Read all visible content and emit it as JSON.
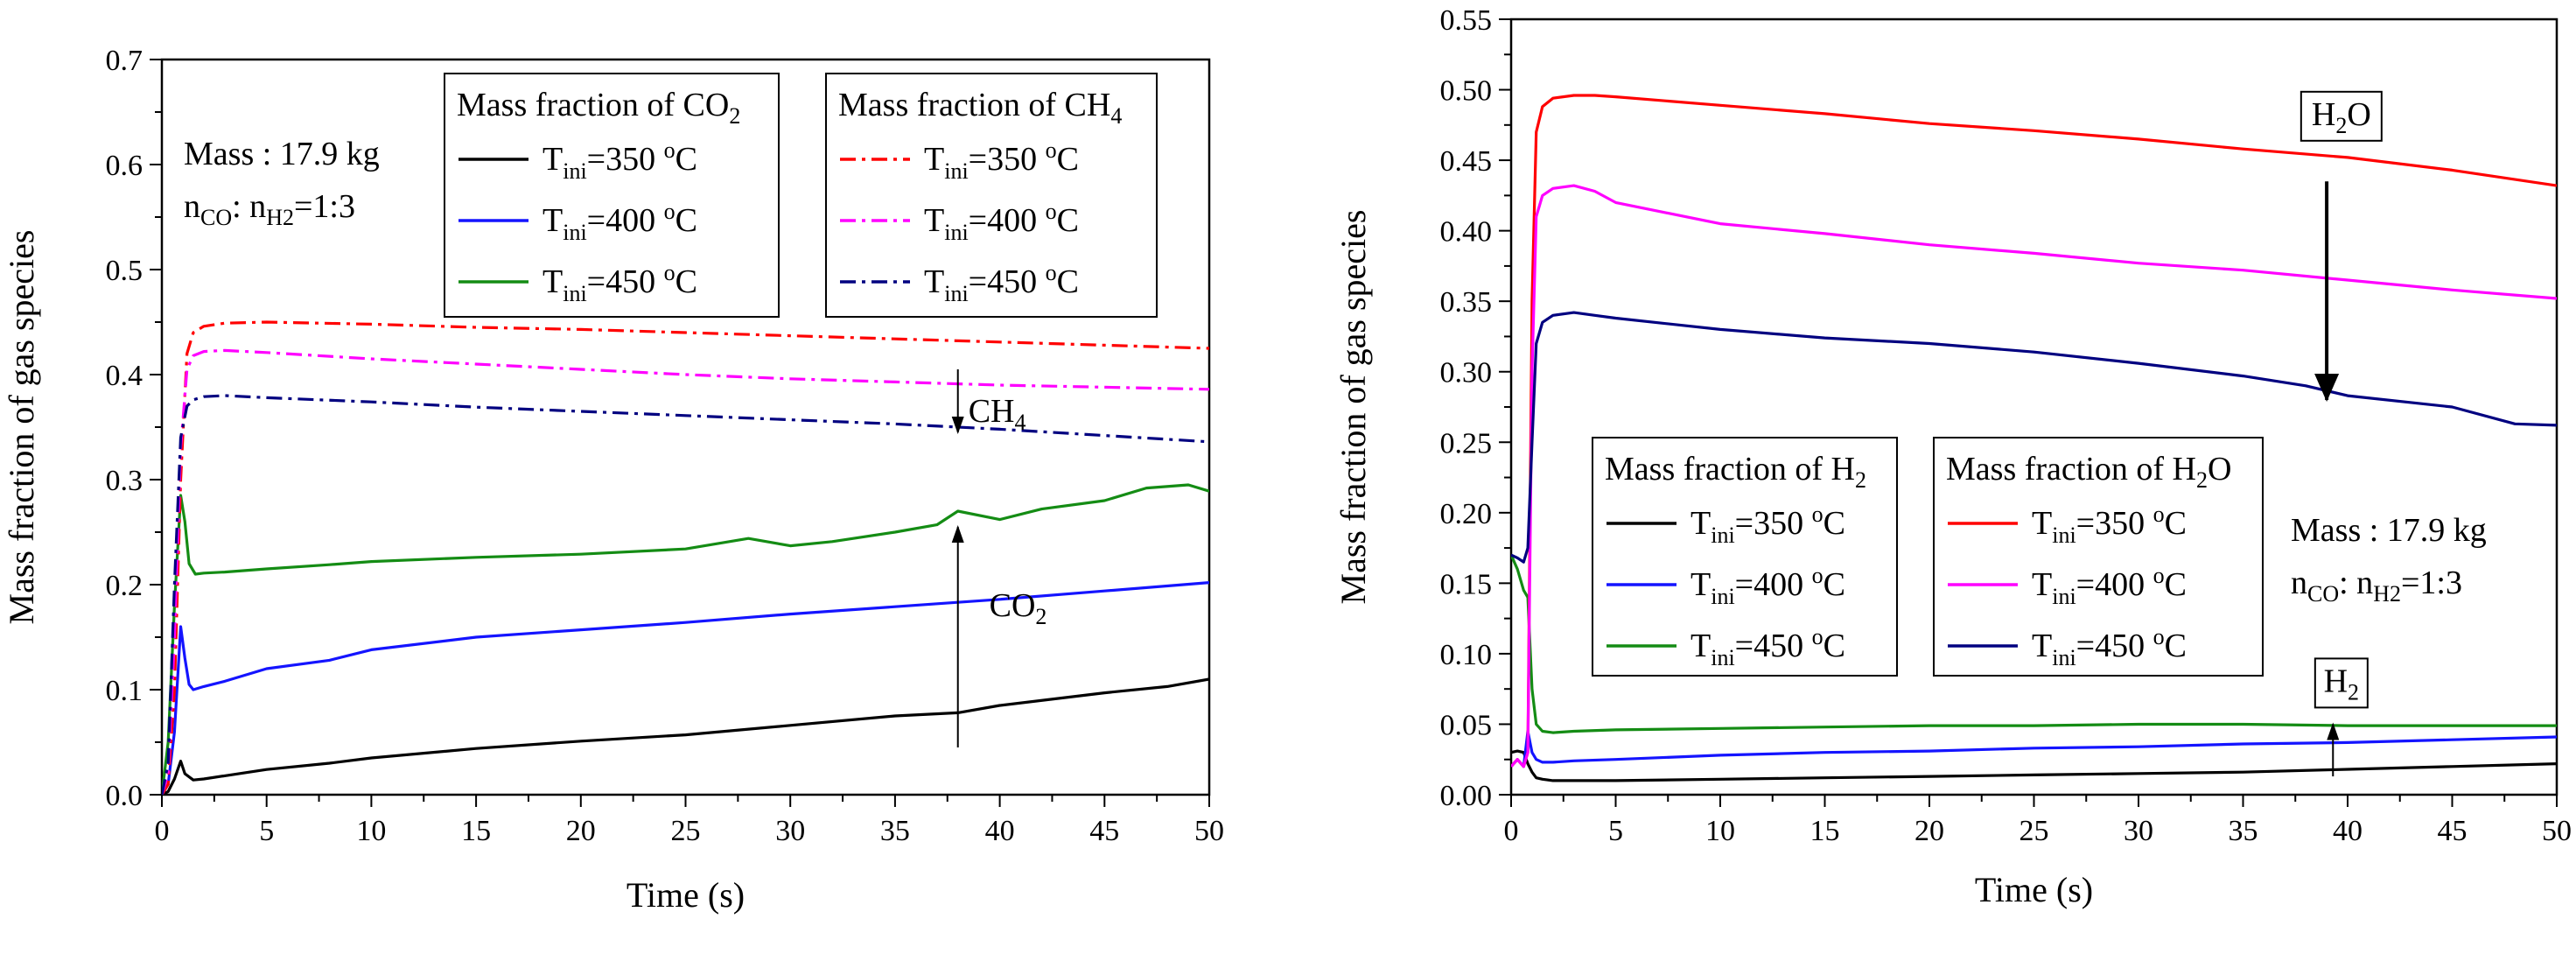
{
  "chart_data": [
    {
      "type": "line",
      "id": "left",
      "xlabel": "Time (s)",
      "ylabel": "Mass fraction of gas species",
      "xlim": [
        0,
        50
      ],
      "ylim": [
        0,
        0.7
      ],
      "xticks": [
        "0",
        "5",
        "10",
        "15",
        "20",
        "25",
        "30",
        "35",
        "40",
        "45",
        "50"
      ],
      "yticks": [
        "0.0",
        "0.1",
        "0.2",
        "0.3",
        "0.4",
        "0.5",
        "0.6",
        "0.7"
      ],
      "info": {
        "mass": "Mass : 17.9 kg",
        "ratio_prefix": "n",
        "ratio_sub1": "CO",
        "ratio_mid": ": n",
        "ratio_sub2": "H2",
        "ratio_suffix": "=1:3"
      },
      "legends": [
        {
          "title_text": "Mass fraction of CO",
          "title_sub": "2",
          "title_after": "",
          "entries": [
            {
              "prefix": "T",
              "sub": "ini",
              "mid": "=350 ",
              "sup": "o",
              "suffix": "C",
              "color": "#000000",
              "dash": "solid"
            },
            {
              "prefix": "T",
              "sub": "ini",
              "mid": "=400 ",
              "sup": "o",
              "suffix": "C",
              "color": "#1414ff",
              "dash": "solid"
            },
            {
              "prefix": "T",
              "sub": "ini",
              "mid": "=450 ",
              "sup": "o",
              "suffix": "C",
              "color": "#148c14",
              "dash": "solid"
            }
          ]
        },
        {
          "title_text": "Mass fraction of CH",
          "title_sub": "4",
          "title_after": "",
          "entries": [
            {
              "prefix": "T",
              "sub": "ini",
              "mid": "=350 ",
              "sup": "o",
              "suffix": "C",
              "color": "#ff0000",
              "dash": "dashdot"
            },
            {
              "prefix": "T",
              "sub": "ini",
              "mid": "=400 ",
              "sup": "o",
              "suffix": "C",
              "color": "#ff00ff",
              "dash": "dashdot"
            },
            {
              "prefix": "T",
              "sub": "ini",
              "mid": "=450 ",
              "sup": "o",
              "suffix": "C",
              "color": "#000080",
              "dash": "dashdot"
            }
          ]
        }
      ],
      "annotations": [
        {
          "text": "CH",
          "sub": "4",
          "boxed": false,
          "x": 38.5,
          "y": 0.355,
          "arrow": {
            "x": 38,
            "y_from": 0.405,
            "y_to": 0.345,
            "head": "down"
          }
        },
        {
          "text": "CO",
          "sub": "2",
          "boxed": false,
          "x": 39.5,
          "y": 0.17,
          "arrow": {
            "x": 38,
            "y_from": 0.045,
            "y_to": 0.255,
            "head": "up"
          }
        }
      ],
      "series": [
        {
          "name": "CO2 Tini=350 °C",
          "color": "#000000",
          "dash": "solid",
          "x": [
            0,
            0.3,
            0.6,
            0.9,
            1.1,
            1.5,
            2,
            3,
            5,
            8,
            10,
            15,
            20,
            25,
            30,
            35,
            38,
            40,
            45,
            48,
            50
          ],
          "y": [
            0,
            0.003,
            0.015,
            0.032,
            0.02,
            0.014,
            0.015,
            0.018,
            0.024,
            0.03,
            0.035,
            0.044,
            0.051,
            0.057,
            0.066,
            0.075,
            0.078,
            0.085,
            0.097,
            0.103,
            0.11
          ]
        },
        {
          "name": "CO2 Tini=400 °C",
          "color": "#1414ff",
          "dash": "solid",
          "x": [
            0,
            0.3,
            0.6,
            0.9,
            1.1,
            1.3,
            1.5,
            2,
            3,
            5,
            8,
            10,
            15,
            20,
            25,
            30,
            35,
            40,
            45,
            50
          ],
          "y": [
            0,
            0.01,
            0.06,
            0.16,
            0.13,
            0.105,
            0.1,
            0.103,
            0.108,
            0.12,
            0.128,
            0.138,
            0.15,
            0.157,
            0.164,
            0.172,
            0.179,
            0.186,
            0.194,
            0.202
          ]
        },
        {
          "name": "CO2 Tini=450 °C",
          "color": "#148c14",
          "dash": "solid",
          "x": [
            0,
            0.3,
            0.6,
            0.9,
            1.1,
            1.3,
            1.6,
            2,
            3,
            5,
            8,
            10,
            15,
            20,
            25,
            28,
            30,
            32,
            35,
            37,
            38,
            40,
            42,
            45,
            47,
            49,
            50
          ],
          "y": [
            0,
            0.05,
            0.18,
            0.285,
            0.26,
            0.22,
            0.21,
            0.211,
            0.212,
            0.215,
            0.219,
            0.222,
            0.226,
            0.229,
            0.234,
            0.244,
            0.237,
            0.241,
            0.25,
            0.257,
            0.27,
            0.262,
            0.272,
            0.28,
            0.292,
            0.295,
            0.289
          ]
        },
        {
          "name": "CH4 Tini=350 °C",
          "color": "#ff0000",
          "dash": "dashdot",
          "x": [
            0,
            0.3,
            0.6,
            0.9,
            1.2,
            1.5,
            2,
            3,
            5,
            10,
            15,
            20,
            25,
            30,
            35,
            40,
            45,
            50
          ],
          "y": [
            0,
            0.01,
            0.1,
            0.3,
            0.42,
            0.44,
            0.446,
            0.449,
            0.45,
            0.448,
            0.445,
            0.443,
            0.44,
            0.437,
            0.434,
            0.431,
            0.428,
            0.425
          ]
        },
        {
          "name": "CH4 Tini=400 °C",
          "color": "#ff00ff",
          "dash": "dashdot",
          "x": [
            0,
            0.3,
            0.6,
            0.9,
            1.2,
            1.5,
            2,
            3,
            5,
            10,
            15,
            20,
            25,
            30,
            35,
            40,
            45,
            50
          ],
          "y": [
            0,
            0.02,
            0.15,
            0.33,
            0.405,
            0.418,
            0.422,
            0.423,
            0.421,
            0.415,
            0.41,
            0.405,
            0.4,
            0.396,
            0.393,
            0.39,
            0.388,
            0.386
          ]
        },
        {
          "name": "CH4 Tini=450 °C",
          "color": "#000080",
          "dash": "dashdot",
          "x": [
            0,
            0.3,
            0.6,
            0.9,
            1.2,
            1.5,
            2,
            3,
            5,
            10,
            15,
            20,
            25,
            30,
            35,
            40,
            45,
            50
          ],
          "y": [
            0,
            0.03,
            0.2,
            0.34,
            0.37,
            0.376,
            0.379,
            0.38,
            0.378,
            0.374,
            0.369,
            0.365,
            0.361,
            0.357,
            0.353,
            0.348,
            0.342,
            0.336
          ]
        }
      ]
    },
    {
      "type": "line",
      "id": "right",
      "xlabel": "Time (s)",
      "ylabel": "Mass fraction of gas species",
      "xlim": [
        0,
        50
      ],
      "ylim": [
        0,
        0.55
      ],
      "xticks": [
        "0",
        "5",
        "10",
        "15",
        "20",
        "25",
        "30",
        "35",
        "40",
        "45",
        "50"
      ],
      "yticks": [
        "0.00",
        "0.05",
        "0.10",
        "0.15",
        "0.20",
        "0.25",
        "0.30",
        "0.35",
        "0.40",
        "0.45",
        "0.50",
        "0.55"
      ],
      "info": {
        "mass": "Mass : 17.9 kg",
        "ratio_prefix": "n",
        "ratio_sub1": "CO",
        "ratio_mid": ": n",
        "ratio_sub2": "H2",
        "ratio_suffix": "=1:3"
      },
      "legends": [
        {
          "title_text": "Mass fraction of H",
          "title_sub": "2",
          "title_after": "",
          "entries": [
            {
              "prefix": "T",
              "sub": "ini",
              "mid": "=350 ",
              "sup": "o",
              "suffix": "C",
              "color": "#000000",
              "dash": "solid"
            },
            {
              "prefix": "T",
              "sub": "ini",
              "mid": "=400 ",
              "sup": "o",
              "suffix": "C",
              "color": "#1414ff",
              "dash": "solid"
            },
            {
              "prefix": "T",
              "sub": "ini",
              "mid": "=450 ",
              "sup": "o",
              "suffix": "C",
              "color": "#148c14",
              "dash": "solid"
            }
          ]
        },
        {
          "title_text": "Mass fraction of H",
          "title_sub": "2",
          "title_after": "O",
          "entries": [
            {
              "prefix": "T",
              "sub": "ini",
              "mid": "=350 ",
              "sup": "o",
              "suffix": "C",
              "color": "#ff0000",
              "dash": "solid"
            },
            {
              "prefix": "T",
              "sub": "ini",
              "mid": "=400 ",
              "sup": "o",
              "suffix": "C",
              "color": "#ff00ff",
              "dash": "solid"
            },
            {
              "prefix": "T",
              "sub": "ini",
              "mid": "=450 ",
              "sup": "o",
              "suffix": "C",
              "color": "#000080",
              "dash": "solid"
            }
          ]
        }
      ],
      "annotations": [
        {
          "text": "H",
          "sub": "2",
          "after": "O",
          "boxed": true,
          "x": 39.7,
          "y": 0.475,
          "arrow": {
            "x": 39,
            "y_from": 0.435,
            "y_to": 0.28,
            "head": "down"
          }
        },
        {
          "text": "H",
          "sub": "2",
          "after": "",
          "boxed": true,
          "x": 39.7,
          "y": 0.073,
          "arrow": {
            "x": 39.3,
            "y_from": 0.013,
            "y_to": 0.05,
            "head": "up"
          }
        }
      ],
      "series": [
        {
          "name": "H2 Tini=350 °C",
          "color": "#000000",
          "dash": "solid",
          "x": [
            0,
            0.3,
            0.6,
            0.8,
            1.0,
            1.2,
            1.5,
            2,
            3,
            5,
            10,
            15,
            20,
            25,
            30,
            35,
            40,
            45,
            50
          ],
          "y": [
            0.03,
            0.031,
            0.03,
            0.022,
            0.016,
            0.012,
            0.011,
            0.01,
            0.01,
            0.01,
            0.011,
            0.012,
            0.013,
            0.014,
            0.015,
            0.016,
            0.018,
            0.02,
            0.022
          ]
        },
        {
          "name": "H2 Tini=400 °C",
          "color": "#1414ff",
          "dash": "solid",
          "x": [
            0,
            0.3,
            0.6,
            0.8,
            1.0,
            1.2,
            1.5,
            2,
            3,
            5,
            10,
            15,
            20,
            25,
            30,
            35,
            40,
            45,
            50
          ],
          "y": [
            0.02,
            0.025,
            0.02,
            0.045,
            0.03,
            0.025,
            0.023,
            0.023,
            0.024,
            0.025,
            0.028,
            0.03,
            0.031,
            0.033,
            0.034,
            0.036,
            0.037,
            0.039,
            0.041
          ]
        },
        {
          "name": "H2 Tini=450 °C",
          "color": "#148c14",
          "dash": "solid",
          "x": [
            0,
            0.3,
            0.6,
            0.8,
            1.0,
            1.2,
            1.5,
            2,
            3,
            5,
            10,
            15,
            20,
            25,
            30,
            35,
            40,
            45,
            50
          ],
          "y": [
            0.17,
            0.16,
            0.145,
            0.14,
            0.075,
            0.05,
            0.045,
            0.044,
            0.045,
            0.046,
            0.047,
            0.048,
            0.049,
            0.049,
            0.05,
            0.05,
            0.049,
            0.049,
            0.049
          ]
        },
        {
          "name": "H2O Tini=350 °C",
          "color": "#ff0000",
          "dash": "solid",
          "x": [
            0,
            0.3,
            0.6,
            0.8,
            1.0,
            1.2,
            1.5,
            2,
            3,
            4,
            5,
            10,
            15,
            20,
            25,
            30,
            35,
            40,
            45,
            50
          ],
          "y": [
            0.02,
            0.025,
            0.02,
            0.03,
            0.35,
            0.47,
            0.488,
            0.494,
            0.496,
            0.496,
            0.495,
            0.489,
            0.483,
            0.476,
            0.471,
            0.465,
            0.458,
            0.452,
            0.443,
            0.432
          ]
        },
        {
          "name": "H2O Tini=400 °C",
          "color": "#ff00ff",
          "dash": "solid",
          "x": [
            0,
            0.3,
            0.6,
            0.8,
            1.0,
            1.2,
            1.5,
            2,
            3,
            4,
            5,
            10,
            15,
            20,
            25,
            30,
            35,
            40,
            45,
            50
          ],
          "y": [
            0.02,
            0.025,
            0.02,
            0.03,
            0.3,
            0.41,
            0.425,
            0.43,
            0.432,
            0.428,
            0.42,
            0.405,
            0.398,
            0.39,
            0.384,
            0.377,
            0.372,
            0.365,
            0.358,
            0.352
          ]
        },
        {
          "name": "H2O Tini=450 °C",
          "color": "#000080",
          "dash": "solid",
          "x": [
            0,
            0.3,
            0.6,
            0.8,
            1.0,
            1.2,
            1.5,
            2,
            3,
            4,
            5,
            10,
            15,
            20,
            25,
            30,
            35,
            38,
            40,
            45,
            48,
            50
          ],
          "y": [
            0.17,
            0.168,
            0.165,
            0.175,
            0.25,
            0.32,
            0.335,
            0.34,
            0.342,
            0.34,
            0.338,
            0.33,
            0.324,
            0.32,
            0.314,
            0.306,
            0.297,
            0.29,
            0.283,
            0.275,
            0.263,
            0.262
          ]
        }
      ]
    }
  ]
}
